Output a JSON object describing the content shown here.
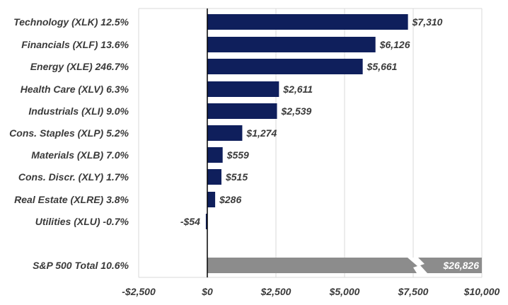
{
  "chart_data": {
    "type": "bar",
    "orientation": "horizontal",
    "categories": [
      "Technology (XLK) 12.5%",
      "Financials (XLF) 13.6%",
      "Energy (XLE) 246.7%",
      "Health Care (XLV) 6.3%",
      "Industrials (XLI) 9.0%",
      "Cons. Staples (XLP) 5.2%",
      "Materials (XLB) 7.0%",
      "Cons. Discr. (XLY) 1.7%",
      "Real Estate (XLRE) 3.8%",
      "Utilities (XLU) -0.7%"
    ],
    "values": [
      7310,
      6126,
      5661,
      2611,
      2539,
      1274,
      559,
      515,
      286,
      -54
    ],
    "value_labels": [
      "$7,310",
      "$6,126",
      "$5,661",
      "$2,611",
      "$2,539",
      "$1,274",
      "$559",
      "$515",
      "$286",
      "-$54"
    ],
    "total": {
      "label": "S&P 500 Total 10.6%",
      "value": 26826,
      "value_label": "$26,826",
      "axis_break": true
    },
    "xlim": [
      -2500,
      10000
    ],
    "xticks": [
      -2500,
      0,
      2500,
      5000,
      7500,
      10000
    ],
    "xtick_labels": [
      "-$2,500",
      "$0",
      "$2,500",
      "$5,000",
      "$7,500",
      "$10,000"
    ],
    "grid": true,
    "bar_color": "#0f1f5c",
    "total_color": "#8c8c8c",
    "title": "",
    "xlabel": "",
    "ylabel": ""
  }
}
